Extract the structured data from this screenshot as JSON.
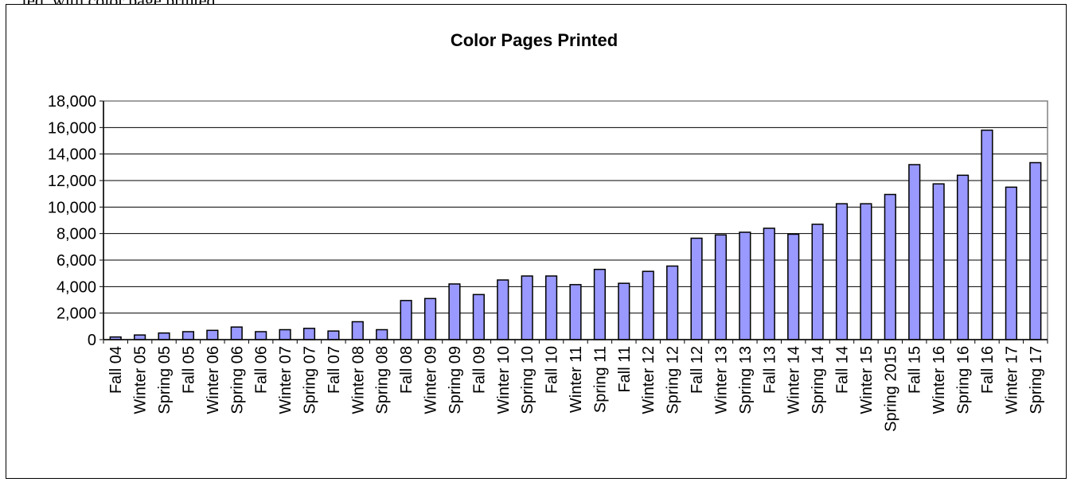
{
  "top_text": "…ted, with color page printed, …",
  "chart_data": {
    "type": "bar",
    "title": "Color Pages Printed",
    "xlabel": "",
    "ylabel": "",
    "ylim": [
      0,
      18000
    ],
    "yticks": [
      0,
      2000,
      4000,
      6000,
      8000,
      10000,
      12000,
      14000,
      16000,
      18000
    ],
    "ytick_labels": [
      "0",
      "2,000",
      "4,000",
      "6,000",
      "8,000",
      "10,000",
      "12,000",
      "14,000",
      "16,000",
      "18,000"
    ],
    "grid": true,
    "legend": "none",
    "bar_color": "#9999ff",
    "bar_stroke": "#000000",
    "categories": [
      "Fall 04",
      "Winter 05",
      "Spring 05",
      "Fall 05",
      "Winter 06",
      "Spring 06",
      "Fall 06",
      "Winter 07",
      "Spring 07",
      "Fall 07",
      "Winter 08",
      "Spring 08",
      "Fall 08",
      "Winter 09",
      "Spring 09",
      "Fall 09",
      "Winter 10",
      "Spring 10",
      "Fall 10",
      "Winter 11",
      "Spring 11",
      "Fall 11",
      "Winter 12",
      "Spring 12",
      "Fall 12",
      "Winter 13",
      "Spring 13",
      "Fall 13",
      "Winter 14",
      "Spring 14",
      "Fall 14",
      "Winter 15",
      "Spring 2015",
      "Fall 15",
      "Winter 16",
      "Spring 16",
      "Fall 16",
      "Winter 17",
      "Spring 17"
    ],
    "values": [
      200,
      350,
      500,
      600,
      700,
      950,
      600,
      750,
      850,
      650,
      1350,
      750,
      2950,
      3100,
      4200,
      3400,
      4500,
      4800,
      4800,
      4150,
      5300,
      4250,
      5150,
      5550,
      7650,
      7900,
      8100,
      8400,
      7950,
      8700,
      10250,
      10250,
      10950,
      13200,
      11750,
      12400,
      15800,
      11500,
      13350
    ]
  }
}
